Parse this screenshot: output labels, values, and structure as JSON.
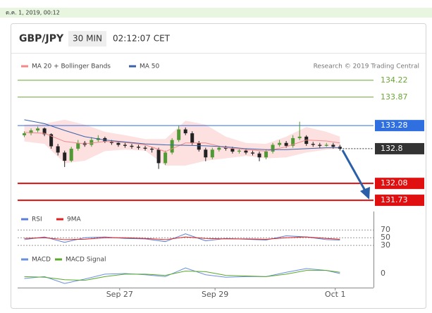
{
  "header": {
    "date": "ต.ค. 1, 2019, 00:12",
    "symbol": "GBP/JPY",
    "interval": "30 MIN",
    "time": "02:12:07 CET",
    "source": "Research © 2019 Trading Central"
  },
  "chart_data": [
    {
      "type": "candlestick",
      "open": [
        133.08,
        133.12,
        133.18,
        133.22,
        133.1,
        132.85,
        132.72,
        132.55,
        132.8,
        132.92,
        132.88,
        132.98,
        133.02,
        132.95,
        132.92,
        132.88,
        132.86,
        132.84,
        132.82,
        132.8,
        132.78,
        132.5,
        132.72,
        132.98,
        133.2,
        133.12,
        132.92,
        132.78,
        132.62,
        132.78,
        132.82,
        132.8,
        132.74,
        132.76,
        132.72,
        132.7,
        132.62,
        132.74,
        132.88,
        132.92,
        132.86,
        133.02,
        133.05,
        132.9,
        132.88,
        132.86,
        132.88,
        132.84
      ],
      "high": [
        133.16,
        133.22,
        133.26,
        133.24,
        133.12,
        132.9,
        132.76,
        132.84,
        132.98,
        132.96,
        133.04,
        133.08,
        133.05,
        132.98,
        132.95,
        132.92,
        132.9,
        132.88,
        132.86,
        132.84,
        132.82,
        132.76,
        133.02,
        133.28,
        133.24,
        133.16,
        132.96,
        132.82,
        132.82,
        132.86,
        132.86,
        132.84,
        132.8,
        132.8,
        132.76,
        132.74,
        132.78,
        132.92,
        132.98,
        132.96,
        133.08,
        133.36,
        133.08,
        132.94,
        132.92,
        132.92,
        132.92,
        132.88
      ],
      "low": [
        133.04,
        133.08,
        133.14,
        133.06,
        132.8,
        132.66,
        132.42,
        132.52,
        132.76,
        132.84,
        132.84,
        132.94,
        132.92,
        132.88,
        132.84,
        132.82,
        132.8,
        132.78,
        132.76,
        132.72,
        132.38,
        132.46,
        132.68,
        132.94,
        133.08,
        132.88,
        132.74,
        132.54,
        132.58,
        132.74,
        132.76,
        132.7,
        132.7,
        132.68,
        132.66,
        132.54,
        132.58,
        132.7,
        132.84,
        132.82,
        132.82,
        132.98,
        132.86,
        132.84,
        132.82,
        132.84,
        132.8,
        132.76
      ],
      "close": [
        133.12,
        133.18,
        133.22,
        133.1,
        132.85,
        132.72,
        132.55,
        132.8,
        132.92,
        132.88,
        132.98,
        133.02,
        132.95,
        132.92,
        132.88,
        132.86,
        132.84,
        132.82,
        132.8,
        132.78,
        132.5,
        132.72,
        132.98,
        133.2,
        133.12,
        132.92,
        132.78,
        132.62,
        132.78,
        132.82,
        132.8,
        132.74,
        132.76,
        132.72,
        132.7,
        132.62,
        132.74,
        132.88,
        132.92,
        132.86,
        133.02,
        133.05,
        132.9,
        132.88,
        132.86,
        132.88,
        132.84,
        132.8
      ],
      "up_color": "#4f9a34",
      "down_color": "#222222",
      "series": [
        {
          "name": "MA 20 + Bollinger Bands",
          "color": "#f08a8a",
          "band_color": "#fde0e0",
          "x": [
            0,
            3,
            6,
            9,
            12,
            15,
            18,
            21,
            24,
            27,
            30,
            33,
            36,
            39,
            42,
            45,
            47
          ],
          "values": [
            133.14,
            133.12,
            132.95,
            132.9,
            132.95,
            132.93,
            132.88,
            132.74,
            132.92,
            132.92,
            132.82,
            132.78,
            132.75,
            132.84,
            132.98,
            132.96,
            132.92
          ],
          "upper": [
            133.3,
            133.32,
            133.4,
            133.3,
            133.15,
            133.08,
            133.0,
            133.0,
            133.38,
            133.3,
            133.05,
            132.92,
            132.9,
            133.05,
            133.25,
            133.15,
            133.05
          ],
          "lower": [
            132.95,
            132.9,
            132.5,
            132.55,
            132.75,
            132.78,
            132.76,
            132.45,
            132.45,
            132.55,
            132.6,
            132.65,
            132.6,
            132.62,
            132.72,
            132.78,
            132.8
          ]
        },
        {
          "name": "MA 50",
          "color": "#3a62a8",
          "x": [
            0,
            3,
            6,
            9,
            12,
            15,
            18,
            21,
            24,
            27,
            30,
            33,
            36,
            39,
            42,
            45,
            47
          ],
          "values": [
            133.4,
            133.32,
            133.18,
            133.05,
            132.98,
            132.94,
            132.9,
            132.88,
            132.87,
            132.86,
            132.84,
            132.8,
            132.78,
            132.78,
            132.8,
            132.82,
            132.82
          ]
        }
      ],
      "levels": [
        {
          "value": 134.22,
          "color": "#6aa832",
          "line": "solid",
          "width": 1,
          "tag": "text"
        },
        {
          "value": 133.87,
          "color": "#6aa832",
          "line": "solid",
          "width": 1,
          "tag": "text"
        },
        {
          "value": 133.28,
          "color": "#2f6fe0",
          "line": "solid",
          "width": 1,
          "tag": "box"
        },
        {
          "value": 132.8,
          "color": "#333333",
          "line": "dotted",
          "width": 1,
          "tag": "box"
        },
        {
          "value": 132.08,
          "color": "#e01010",
          "line": "solid",
          "width": 2,
          "tag": "box"
        },
        {
          "value": 131.73,
          "color": "#e01010",
          "line": "solid",
          "width": 2,
          "tag": "box"
        }
      ],
      "ylim": [
        131.57,
        134.35
      ],
      "xlim": [
        -1,
        52
      ],
      "xticks": [
        {
          "value": 14.2,
          "label": "Sep 27"
        },
        {
          "value": 28.4,
          "label": "Sep 29"
        },
        {
          "value": 46.3,
          "label": "Oct 1"
        }
      ]
    },
    {
      "type": "line",
      "series": [
        {
          "name": "RSI",
          "color": "#5b7fd6",
          "x": [
            0,
            3,
            6,
            9,
            12,
            15,
            18,
            21,
            24,
            27,
            30,
            33,
            36,
            39,
            42,
            45,
            47
          ],
          "values": [
            45,
            52,
            38,
            50,
            52,
            48,
            47,
            40,
            60,
            42,
            48,
            46,
            44,
            55,
            52,
            45,
            44
          ]
        },
        {
          "name": "9MA",
          "color": "#e02020",
          "x": [
            0,
            3,
            6,
            9,
            12,
            15,
            18,
            21,
            24,
            27,
            30,
            33,
            36,
            39,
            42,
            45,
            47
          ],
          "values": [
            48,
            50,
            45,
            46,
            50,
            50,
            48,
            45,
            52,
            48,
            47,
            47,
            46,
            50,
            52,
            48,
            46
          ]
        }
      ],
      "ylim": [
        23,
        85
      ],
      "yticks": [
        70,
        50,
        30
      ],
      "grid": true
    },
    {
      "type": "line",
      "series": [
        {
          "name": "MACD",
          "color": "#6a8fe0",
          "x": [
            0,
            3,
            6,
            9,
            12,
            15,
            18,
            21,
            24,
            27,
            30,
            33,
            36,
            39,
            42,
            45,
            47
          ],
          "values": [
            -0.08,
            -0.05,
            -0.16,
            -0.09,
            -0.01,
            0,
            -0.02,
            -0.05,
            0.09,
            -0.02,
            -0.06,
            -0.05,
            -0.05,
            0.02,
            0.08,
            0.05,
            0
          ]
        },
        {
          "name": "MACD Signal",
          "color": "#5aaa2a",
          "x": [
            0,
            3,
            6,
            9,
            12,
            15,
            18,
            21,
            24,
            27,
            30,
            33,
            36,
            39,
            42,
            45,
            47
          ],
          "values": [
            -0.05,
            -0.06,
            -0.1,
            -0.11,
            -0.05,
            -0.01,
            -0.01,
            -0.03,
            0.04,
            0.03,
            -0.03,
            -0.04,
            -0.05,
            -0.01,
            0.05,
            0.05,
            0.02
          ]
        }
      ],
      "ylim": [
        -0.25,
        0.25
      ],
      "yticks": [
        0
      ],
      "grid": false
    }
  ]
}
